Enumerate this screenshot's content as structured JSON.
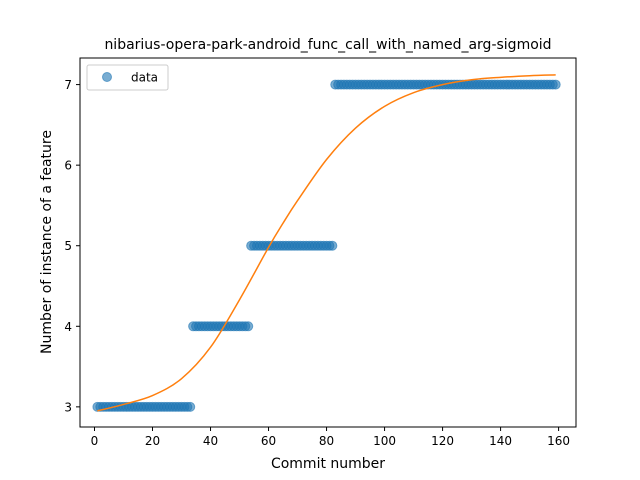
{
  "chart_data": {
    "type": "scatter",
    "title": "nibarius-opera-park-android_func_call_with_named_arg-sigmoid",
    "xlabel": "Commit number",
    "ylabel": "Number of instance of a feature",
    "xlim": [
      -5,
      166
    ],
    "ylim": [
      2.75,
      7.33
    ],
    "xticks": [
      0,
      20,
      40,
      60,
      80,
      100,
      120,
      140,
      160
    ],
    "yticks": [
      3,
      4,
      5,
      6,
      7
    ],
    "grid": false,
    "legend": {
      "placement": "top-left",
      "entries": [
        "data"
      ]
    },
    "series": [
      {
        "name": "data",
        "kind": "scatter",
        "color": "#1f77b4",
        "segments": [
          {
            "x_start": 1,
            "x_end": 33,
            "y": 3
          },
          {
            "x_start": 34,
            "x_end": 53,
            "y": 4
          },
          {
            "x_start": 54,
            "x_end": 82,
            "y": 5
          },
          {
            "x_start": 83,
            "x_end": 159,
            "y": 7
          }
        ]
      },
      {
        "kind": "line",
        "color": "#ff7f0e",
        "x": [
          1,
          10,
          20,
          30,
          40,
          50,
          60,
          65,
          70,
          80,
          90,
          100,
          110,
          120,
          130,
          140,
          150,
          159
        ],
        "y": [
          2.95,
          3.03,
          3.14,
          3.35,
          3.74,
          4.33,
          4.98,
          5.28,
          5.56,
          6.07,
          6.46,
          6.73,
          6.9,
          7.0,
          7.06,
          7.09,
          7.11,
          7.12
        ]
      }
    ]
  }
}
